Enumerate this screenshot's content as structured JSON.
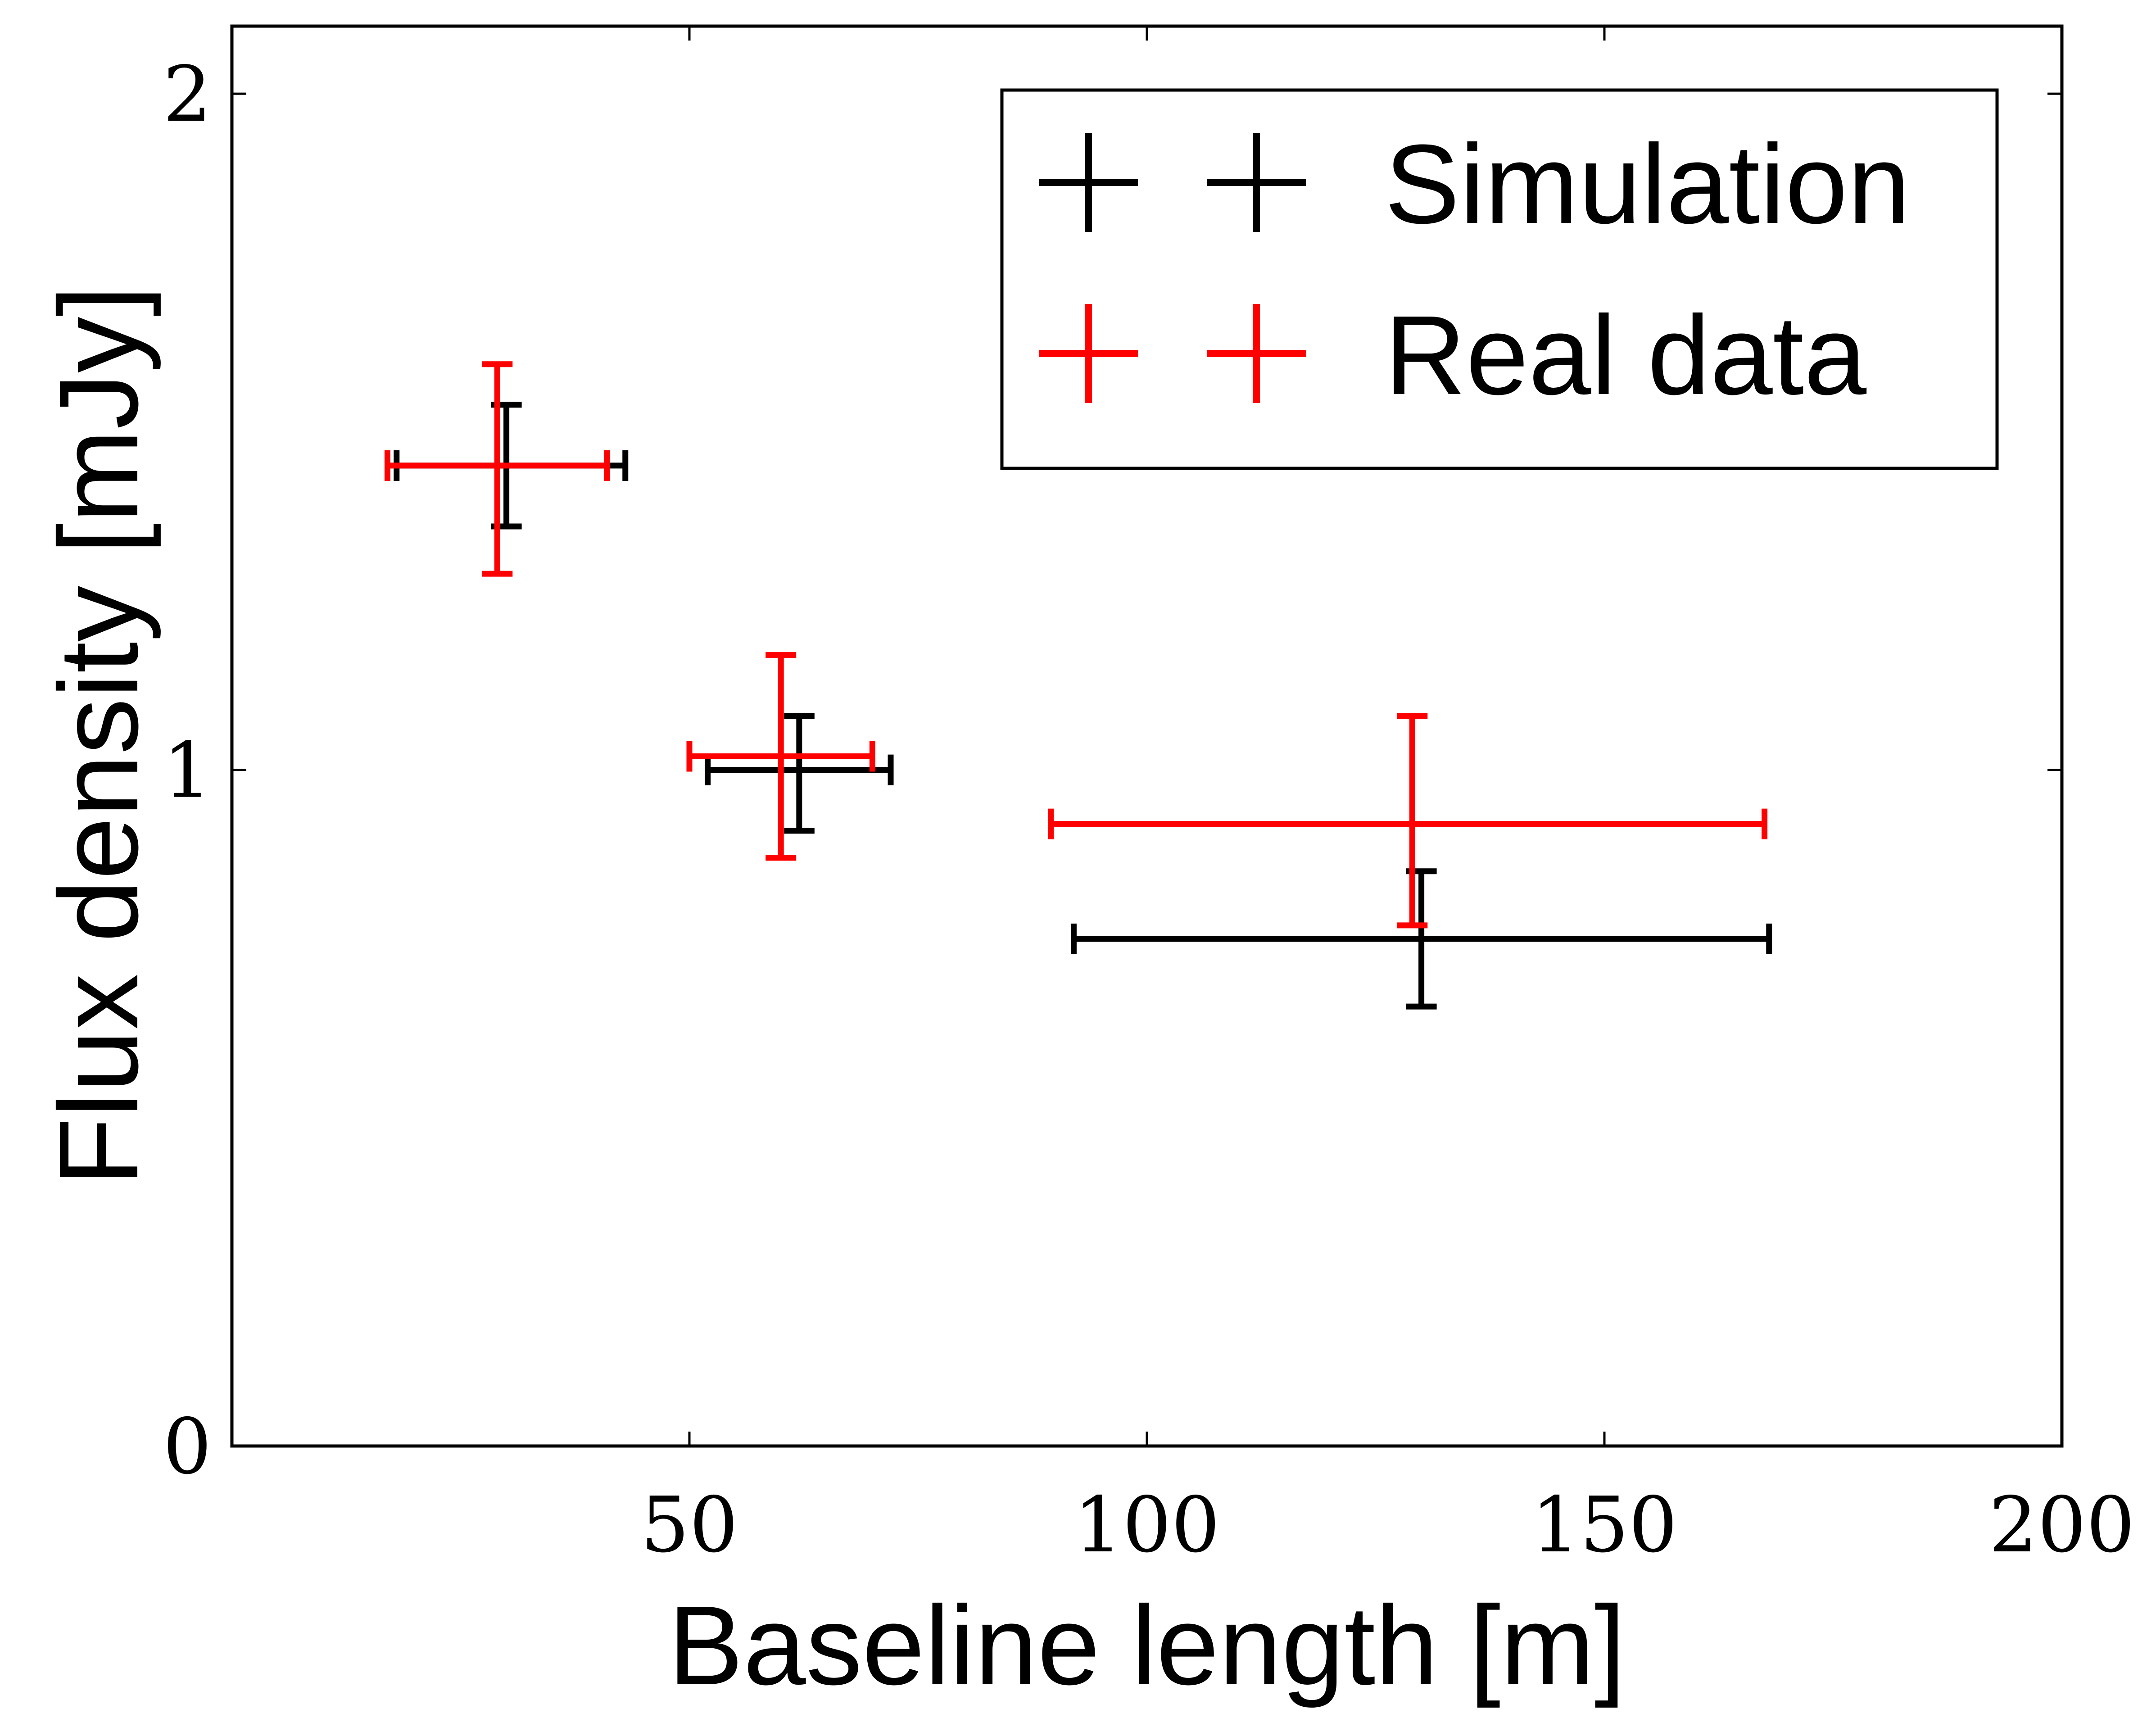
{
  "chart_data": {
    "type": "scatter",
    "title": "",
    "xlabel": "Baseline length [m]",
    "ylabel": "Flux density [mJy]",
    "xlim": [
      0,
      200
    ],
    "ylim": [
      0,
      2.1
    ],
    "xticks": [
      50,
      100,
      150,
      200
    ],
    "xtick_labels": [
      "50",
      "100",
      "150",
      "200"
    ],
    "yticks": [
      0,
      1,
      2
    ],
    "ytick_labels": [
      "0",
      "1",
      "2"
    ],
    "grid": false,
    "legend_position": "top-right",
    "series": [
      {
        "name": "Simulation",
        "color": "#000000",
        "points": [
          {
            "x": 30,
            "y": 1.45,
            "xerr_low": 18,
            "xerr_high": 43,
            "yerr_low": 1.36,
            "yerr_high": 1.54
          },
          {
            "x": 62,
            "y": 1.0,
            "xerr_low": 52,
            "xerr_high": 72,
            "yerr_low": 0.91,
            "yerr_high": 1.08
          },
          {
            "x": 130,
            "y": 0.75,
            "xerr_low": 92,
            "xerr_high": 168,
            "yerr_low": 0.65,
            "yerr_high": 0.85
          }
        ]
      },
      {
        "name": "Real data",
        "color": "#ff0000",
        "points": [
          {
            "x": 29,
            "y": 1.45,
            "xerr_low": 17,
            "xerr_high": 41,
            "yerr_low": 1.29,
            "yerr_high": 1.6
          },
          {
            "x": 60,
            "y": 1.02,
            "xerr_low": 50,
            "xerr_high": 70,
            "yerr_low": 0.87,
            "yerr_high": 1.17
          },
          {
            "x": 129,
            "y": 0.92,
            "xerr_low": 89.5,
            "xerr_high": 167.5,
            "yerr_low": 0.77,
            "yerr_high": 1.08
          }
        ]
      }
    ]
  }
}
